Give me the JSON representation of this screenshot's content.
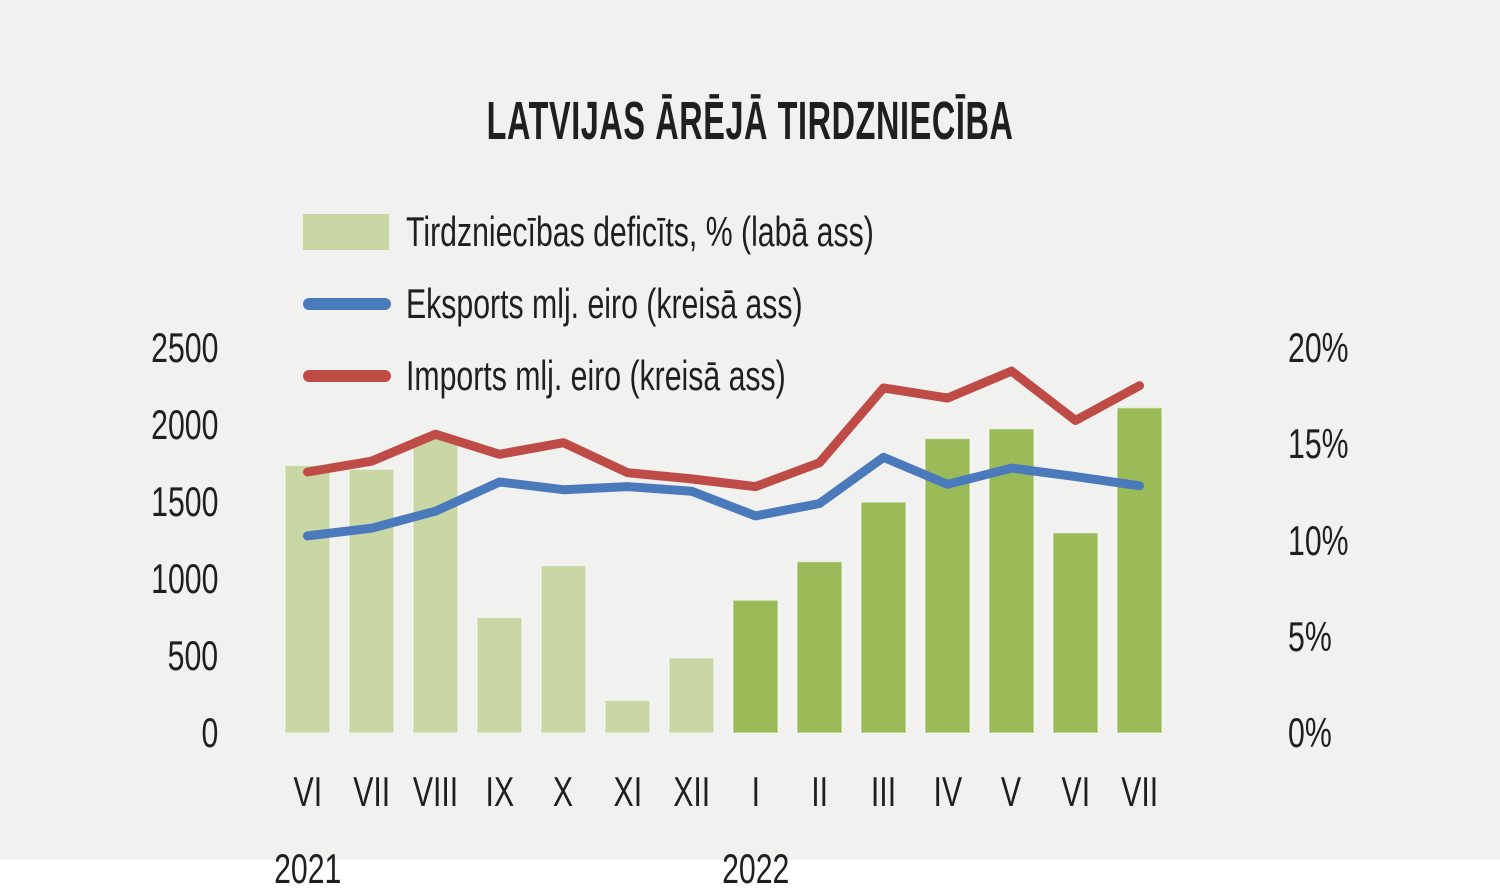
{
  "title": "LATVIJAS ĀRĒJĀ TIRDZNIECĪBA",
  "colors": {
    "background": "#f1f1f0",
    "text": "#1f1f1f",
    "bar_2021": "#c8d7a3",
    "bar_2022": "#9bbb59",
    "exports_line": "#4a7abc",
    "imports_line": "#bf4b47"
  },
  "legend": {
    "items": [
      {
        "label": "Tirdzniecības deficīts, % (labā ass)",
        "swatch": "bar-green"
      },
      {
        "label": "Eksports mlj. eiro (kreisā ass)",
        "swatch": "line-blue"
      },
      {
        "label": "Imports mlj. eiro (kreisā ass)",
        "swatch": "line-red"
      }
    ]
  },
  "chart_data": {
    "type": "bar+line",
    "title": "LATVIJAS ĀRĒJĀ TIRDZNIECĪBA",
    "categories": [
      "VI",
      "VII",
      "VIII",
      "IX",
      "X",
      "XI",
      "XII",
      "I",
      "II",
      "III",
      "IV",
      "V",
      "VI",
      "VII"
    ],
    "year_groups": [
      {
        "label": "2021",
        "start_index": 0
      },
      {
        "label": "2022",
        "start_index": 7
      }
    ],
    "left_axis": {
      "ticks": [
        0,
        500,
        1000,
        1500,
        2000,
        2500
      ],
      "range": [
        0,
        2500
      ],
      "unit": "mlj. eiro"
    },
    "right_axis": {
      "tick_labels": [
        "0%",
        "5%",
        "10%",
        "15%",
        "20%"
      ],
      "ticks_pct": [
        0,
        5,
        10,
        15,
        20
      ],
      "range": [
        0,
        20
      ]
    },
    "grid": "off",
    "legend_position": "top-left",
    "series": [
      {
        "name": "Tirdzniecības deficīts, % (labā ass)",
        "type": "bar",
        "axis": "right",
        "values": [
          13.9,
          13.7,
          15.4,
          6.0,
          8.7,
          1.7,
          3.9,
          6.9,
          8.9,
          12.0,
          15.3,
          15.8,
          10.4,
          16.9
        ]
      },
      {
        "name": "Eksports mlj. eiro (kreisā ass)",
        "type": "line",
        "axis": "left",
        "values": [
          1280,
          1330,
          1440,
          1630,
          1580,
          1600,
          1570,
          1410,
          1490,
          1790,
          1615,
          1720,
          1665,
          1605
        ]
      },
      {
        "name": "Imports mlj. eiro (kreisā ass)",
        "type": "line",
        "axis": "left",
        "values": [
          1695,
          1765,
          1940,
          1810,
          1885,
          1690,
          1650,
          1600,
          1755,
          2240,
          2175,
          2350,
          2030,
          2255
        ]
      }
    ]
  }
}
